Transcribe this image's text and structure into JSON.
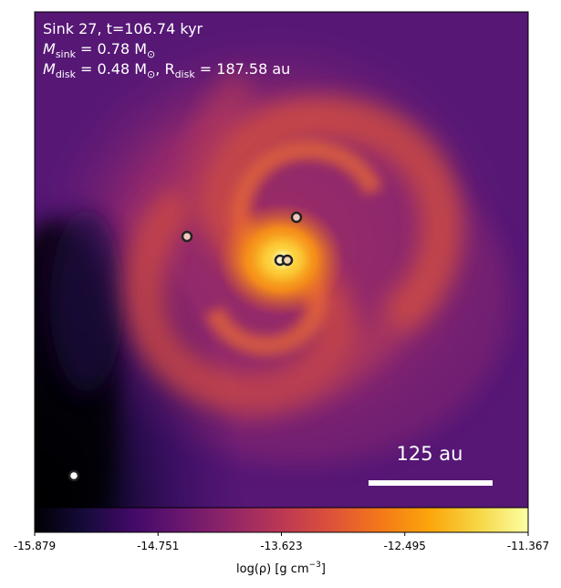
{
  "annotation": {
    "line1": "Sink 27, t=106.74 kyr",
    "line2_main": "M",
    "line2_sub": "sink",
    "line2_rest": " = 0.78 M",
    "line2_sun": "⊙",
    "line3_main": "M",
    "line3_sub": "disk",
    "line3_rest": " = 0.48 M",
    "line3_sun": "⊙",
    "line3_sep": ", R",
    "line3_sub2": "disk",
    "line3_tail": " = 187.58 au"
  },
  "scalebar": {
    "label": "125 au"
  },
  "colorbar": {
    "colormap": "inferno",
    "ticks": [
      "-15.879",
      "-14.751",
      "-13.623",
      "-12.495",
      "-11.367"
    ],
    "label_main": "log(ρ) [g cm",
    "label_sup": "−3",
    "label_end": "]"
  },
  "sinks": [
    {
      "id": "sink-27-primary",
      "fill": "#fff2c8"
    },
    {
      "id": "sink-companion",
      "fill": "#f2d7b0"
    },
    {
      "id": "sink-upper",
      "fill": "#f0c8bc"
    },
    {
      "id": "sink-left",
      "fill": "#f0c8bc"
    },
    {
      "id": "sink-lower-left",
      "fill": "#ffffff"
    }
  ],
  "colors": {
    "disk_core": "#fff9a0",
    "disk_inner": "#fb9b06",
    "spiral_arm": "#e8603a",
    "envelope": "#a02d6a",
    "background": "#5a1a78",
    "void": "#000004"
  }
}
